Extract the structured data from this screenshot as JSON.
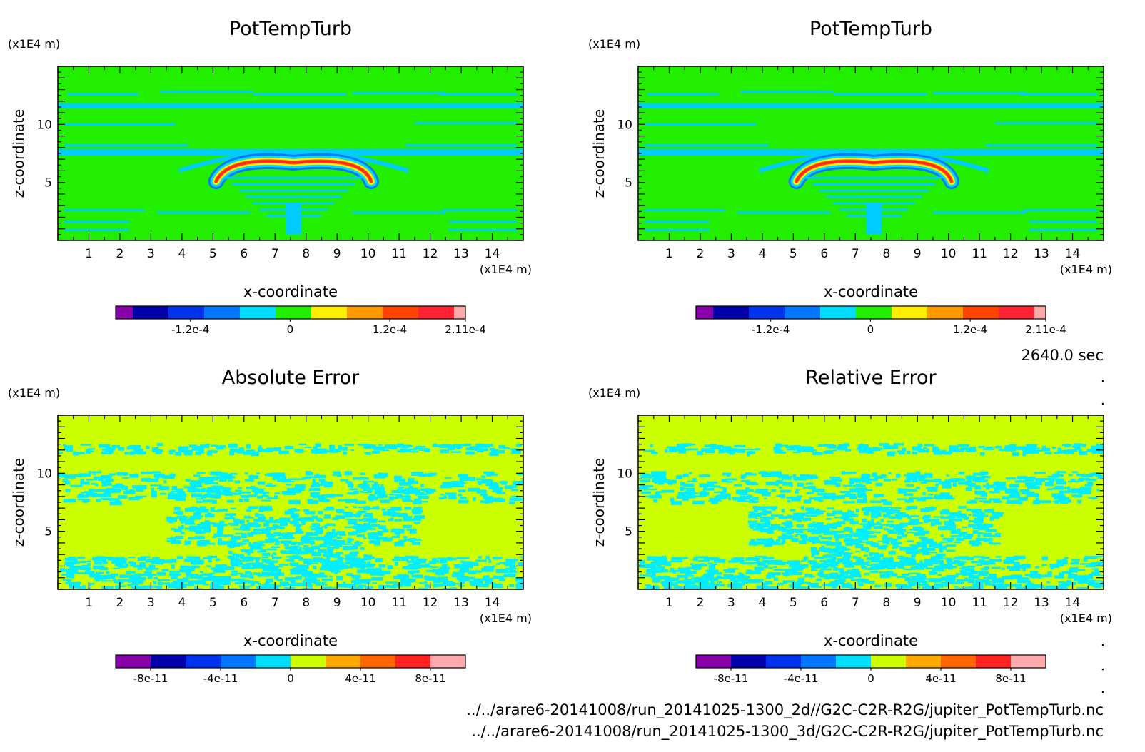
{
  "panels": [
    {
      "title": "PotTempTurb",
      "yunit": "(x1E4 m)",
      "xunit": "(x1E4 m)",
      "xlabel": "x-coordinate",
      "ylabel": "z-coordinate",
      "pattern": "field",
      "colorbar_labels": [
        "-1.2e-4",
        "0",
        "1.2e-4",
        "2.11e-4"
      ]
    },
    {
      "title": "PotTempTurb",
      "yunit": "(x1E4 m)",
      "xunit": "(x1E4 m)",
      "xlabel": "x-coordinate",
      "ylabel": "z-coordinate",
      "pattern": "field",
      "colorbar_labels": [
        "-1.2e-4",
        "0",
        "1.2e-4",
        "2.11e-4"
      ]
    },
    {
      "title": "Absolute Error",
      "yunit": "(x1E4 m)",
      "xunit": "(x1E4 m)",
      "xlabel": "x-coordinate",
      "ylabel": "z-coordinate",
      "pattern": "noise",
      "colorbar_labels": [
        "-8e-11",
        "-4e-11",
        "0",
        "4e-11",
        "8e-11"
      ]
    },
    {
      "title": "Relative Error",
      "yunit": "(x1E4 m)",
      "xunit": "(x1E4 m)",
      "xlabel": "x-coordinate",
      "ylabel": "z-coordinate",
      "pattern": "noise",
      "colorbar_labels": [
        "-8e-11",
        "-4e-11",
        "0",
        "4e-11",
        "8e-11"
      ]
    }
  ],
  "time_label": "2640.0 sec",
  "file_paths": [
    "../../arare6-20141008/run_20141025-1300_2d//G2C-C2R-R2G/jupiter_PotTempTurb.nc",
    "../../arare6-20141008/run_20141025-1300_3d/G2C-C2R-R2G/jupiter_PotTempTurb.nc"
  ],
  "colors": {
    "field_background": "#22ee00",
    "field_band": "#00ccff",
    "noise_background": "#ccff00",
    "noise_band": "#00eeff",
    "colorbar_top": [
      "#8800aa",
      "#0000aa",
      "#0033ee",
      "#0077ff",
      "#00ddff",
      "#22ee00",
      "#ffee00",
      "#ff9900",
      "#ff4400",
      "#ff2233",
      "#ffaaaa"
    ],
    "colorbar_bottom": [
      "#8800aa",
      "#0000aa",
      "#0033ee",
      "#0077ff",
      "#00ddff",
      "#ccff00",
      "#ffaa00",
      "#ff6600",
      "#ff2222",
      "#ffaaaa"
    ]
  },
  "chart_data": [
    {
      "type": "heatmap",
      "title": "PotTempTurb",
      "xlabel": "x-coordinate",
      "ylabel": "z-coordinate",
      "x_unit": "(x1E4 m)",
      "y_unit": "(x1E4 m)",
      "xlim": [
        0,
        15
      ],
      "ylim": [
        0,
        15
      ],
      "x_ticks": [
        1,
        2,
        3,
        4,
        5,
        6,
        7,
        8,
        9,
        10,
        11,
        12,
        13,
        14
      ],
      "y_ticks": [
        5,
        10
      ],
      "colorbar_ticks": [
        "-1.2e-4",
        "0",
        "1.2e-4",
        "2.11e-4"
      ],
      "colorbar_range": [
        -0.00021,
        0.000211
      ]
    },
    {
      "type": "heatmap",
      "title": "PotTempTurb",
      "xlabel": "x-coordinate",
      "ylabel": "z-coordinate",
      "x_unit": "(x1E4 m)",
      "y_unit": "(x1E4 m)",
      "xlim": [
        0,
        15
      ],
      "ylim": [
        0,
        15
      ],
      "x_ticks": [
        1,
        2,
        3,
        4,
        5,
        6,
        7,
        8,
        9,
        10,
        11,
        12,
        13,
        14
      ],
      "y_ticks": [
        5,
        10
      ],
      "colorbar_ticks": [
        "-1.2e-4",
        "0",
        "1.2e-4",
        "2.11e-4"
      ],
      "colorbar_range": [
        -0.00021,
        0.000211
      ]
    },
    {
      "type": "heatmap",
      "title": "Absolute Error",
      "xlabel": "x-coordinate",
      "ylabel": "z-coordinate",
      "x_unit": "(x1E4 m)",
      "y_unit": "(x1E4 m)",
      "xlim": [
        0,
        15
      ],
      "ylim": [
        0,
        15
      ],
      "x_ticks": [
        1,
        2,
        3,
        4,
        5,
        6,
        7,
        8,
        9,
        10,
        11,
        12,
        13,
        14
      ],
      "y_ticks": [
        5,
        10
      ],
      "colorbar_ticks": [
        "-8e-11",
        "-4e-11",
        "0",
        "4e-11",
        "8e-11"
      ],
      "colorbar_range": [
        -1e-10,
        1e-10
      ]
    },
    {
      "type": "heatmap",
      "title": "Relative Error",
      "xlabel": "x-coordinate",
      "ylabel": "z-coordinate",
      "x_unit": "(x1E4 m)",
      "y_unit": "(x1E4 m)",
      "xlim": [
        0,
        15
      ],
      "ylim": [
        0,
        15
      ],
      "x_ticks": [
        1,
        2,
        3,
        4,
        5,
        6,
        7,
        8,
        9,
        10,
        11,
        12,
        13,
        14
      ],
      "y_ticks": [
        5,
        10
      ],
      "colorbar_ticks": [
        "-8e-11",
        "-4e-11",
        "0",
        "4e-11",
        "8e-11"
      ],
      "colorbar_range": [
        -1e-10,
        1e-10
      ]
    }
  ]
}
